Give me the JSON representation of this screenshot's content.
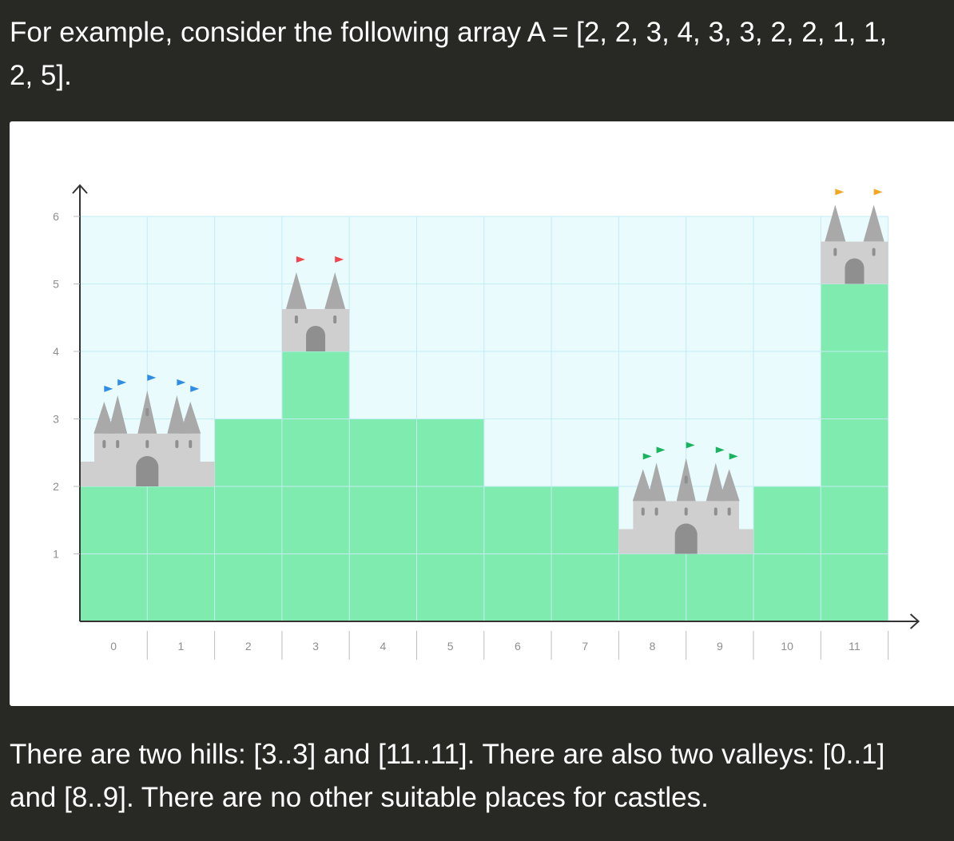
{
  "text": {
    "intro_line1": "For example, consider the following array A = [2, 2, 3, 4, 3, 3, 2, 2, 1, 1,",
    "intro_line2": "2, 5].",
    "outro_line1": "There are two hills: [3..3] and [11..11]. There are also two valleys: [0..1]",
    "outro_line2": "and [8..9]. There are no other suitable places for castles."
  },
  "chart_data": {
    "type": "bar",
    "categories": [
      "0",
      "1",
      "2",
      "3",
      "4",
      "5",
      "6",
      "7",
      "8",
      "9",
      "10",
      "11"
    ],
    "values": [
      2,
      2,
      3,
      4,
      3,
      3,
      2,
      2,
      1,
      1,
      2,
      5
    ],
    "y_ticks": [
      "1",
      "2",
      "3",
      "4",
      "5",
      "6"
    ],
    "ylim": [
      0,
      6
    ],
    "grid": true,
    "colors": {
      "bar": "#80ebaf",
      "plot_bg": "#e9fbfd",
      "grid": "#c4ecf4",
      "axis": "#333333",
      "tick_label": "#8e8e8e",
      "castle": "#cfcfcf",
      "castle_roof": "#a9a9a9",
      "castle_door": "#8f8f8f"
    },
    "castles": [
      {
        "start": 0,
        "end": 1,
        "kind": "valley",
        "flag_color": "#2f8de4"
      },
      {
        "start": 3,
        "end": 3,
        "kind": "hill",
        "flag_color": "#f0454f"
      },
      {
        "start": 8,
        "end": 9,
        "kind": "valley",
        "flag_color": "#19b35f"
      },
      {
        "start": 11,
        "end": 11,
        "kind": "hill",
        "flag_color": "#f5a623"
      }
    ]
  }
}
